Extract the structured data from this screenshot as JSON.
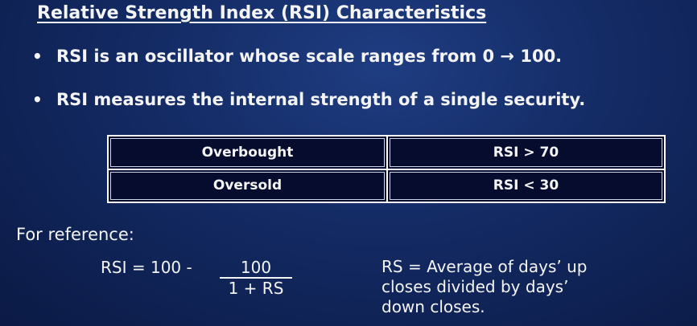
{
  "slide": {
    "title": "Relative Strength Index (RSI) Characteristics",
    "bullets": [
      {
        "marker": "•",
        "text": "RSI is an oscillator whose scale ranges from 0 → 100."
      },
      {
        "marker": "•",
        "text": "RSI measures the internal strength of a single security."
      }
    ],
    "table": {
      "rows": [
        {
          "label": "Overbought",
          "condition": "RSI > 70"
        },
        {
          "label": "Oversold",
          "condition": "RSI < 30"
        }
      ]
    },
    "reference_label": "For reference:",
    "formula": {
      "prefix": "RSI = 100 -",
      "numerator": "100",
      "denominator": "1 + RS"
    },
    "rs_definition": {
      "lines": [
        "RS = Average of days’ up",
        "closes divided by days’",
        "down closes."
      ]
    }
  }
}
